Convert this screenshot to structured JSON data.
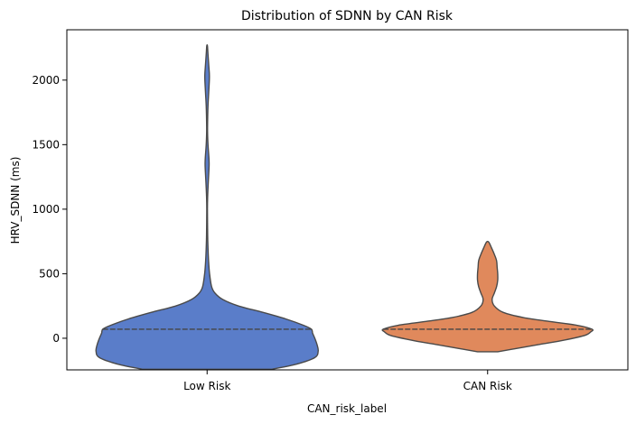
{
  "chart_data": {
    "type": "violin",
    "title": "Distribution of SDNN by CAN Risk",
    "xlabel": "CAN_risk_label",
    "ylabel": "HRV_SDNN (ms)",
    "ylim": [
      -245,
      2390
    ],
    "yticks": [
      0,
      500,
      1000,
      1500,
      2000
    ],
    "categories": [
      "Low Risk",
      "CAN Risk"
    ],
    "grid": false,
    "series": [
      {
        "category": "Low Risk",
        "color": "#5a7dc9",
        "median": 70,
        "density": [
          [
            -240,
            0.58
          ],
          [
            -200,
            0.8
          ],
          [
            -150,
            0.96
          ],
          [
            -100,
            0.99
          ],
          [
            -50,
            0.98
          ],
          [
            0,
            0.96
          ],
          [
            40,
            0.94
          ],
          [
            70,
            0.93
          ],
          [
            100,
            0.86
          ],
          [
            150,
            0.7
          ],
          [
            200,
            0.5
          ],
          [
            250,
            0.28
          ],
          [
            300,
            0.14
          ],
          [
            350,
            0.07
          ],
          [
            400,
            0.04
          ],
          [
            500,
            0.022
          ],
          [
            600,
            0.013
          ],
          [
            700,
            0.008
          ],
          [
            800,
            0.005
          ],
          [
            1000,
            0.003
          ],
          [
            1100,
            0.005
          ],
          [
            1200,
            0.01
          ],
          [
            1300,
            0.016
          ],
          [
            1350,
            0.018
          ],
          [
            1400,
            0.016
          ],
          [
            1500,
            0.008
          ],
          [
            1600,
            0.004
          ],
          [
            1700,
            0.005
          ],
          [
            1800,
            0.008
          ],
          [
            1900,
            0.014
          ],
          [
            2000,
            0.02
          ],
          [
            2050,
            0.02
          ],
          [
            2100,
            0.016
          ],
          [
            2200,
            0.008
          ],
          [
            2265,
            0.003
          ]
        ]
      },
      {
        "category": "CAN Risk",
        "color": "#e0895c",
        "median": 70,
        "density": [
          [
            -105,
            0.09
          ],
          [
            -80,
            0.25
          ],
          [
            -50,
            0.45
          ],
          [
            -20,
            0.65
          ],
          [
            20,
            0.86
          ],
          [
            50,
            0.92
          ],
          [
            70,
            0.93
          ],
          [
            100,
            0.8
          ],
          [
            130,
            0.55
          ],
          [
            160,
            0.32
          ],
          [
            200,
            0.14
          ],
          [
            250,
            0.06
          ],
          [
            300,
            0.04
          ],
          [
            350,
            0.06
          ],
          [
            400,
            0.08
          ],
          [
            450,
            0.09
          ],
          [
            500,
            0.09
          ],
          [
            550,
            0.085
          ],
          [
            600,
            0.08
          ],
          [
            650,
            0.06
          ],
          [
            700,
            0.035
          ],
          [
            745,
            0.01
          ]
        ]
      }
    ]
  }
}
